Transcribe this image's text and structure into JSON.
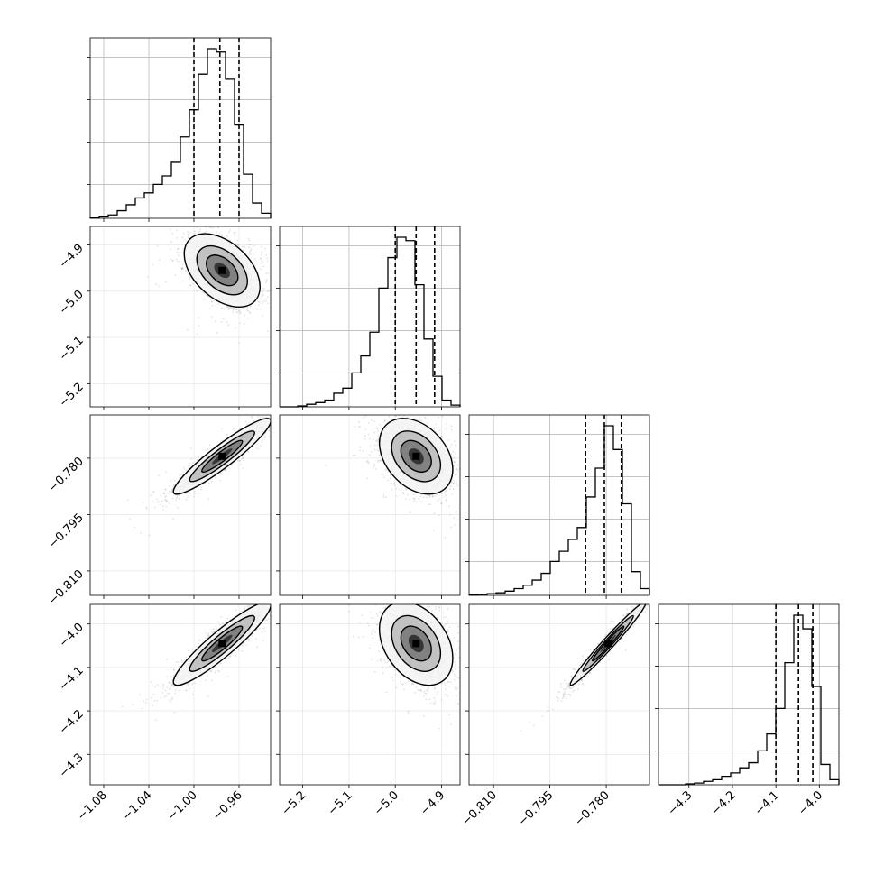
{
  "chart_data": {
    "type": "corner",
    "grid": true,
    "params": [
      {
        "range": [
          -1.092,
          -0.932
        ],
        "ticks": [
          -1.08,
          -1.04,
          -1.0,
          -0.96
        ],
        "tick_labels": [
          "−1.08",
          "−1.04",
          "−1.00",
          "−0.96"
        ],
        "quantiles": [
          -1.0,
          -0.977,
          -0.96
        ],
        "hist": {
          "edges": [
            -1.092,
            -1.084,
            -1.076,
            -1.068,
            -1.06,
            -1.052,
            -1.044,
            -1.036,
            -1.028,
            -1.02,
            -1.012,
            -1.004,
            -0.996,
            -0.988,
            -0.98,
            -0.972,
            -0.964,
            -0.956,
            -0.948,
            -0.94,
            -0.932
          ],
          "counts": [
            0.002,
            0.008,
            0.02,
            0.045,
            0.08,
            0.12,
            0.15,
            0.2,
            0.25,
            0.33,
            0.48,
            0.64,
            0.85,
            1.0,
            0.98,
            0.82,
            0.55,
            0.26,
            0.09,
            0.03
          ]
        }
      },
      {
        "range": [
          -5.25,
          -4.86
        ],
        "ticks": [
          -5.2,
          -5.1,
          -5.0,
          -4.9
        ],
        "tick_labels": [
          "−5.2",
          "−5.1",
          "−5.0",
          "−4.9"
        ],
        "quantiles": [
          -5.0,
          -4.955,
          -4.915
        ],
        "hist": {
          "edges": [
            -5.25,
            -5.2305,
            -5.211,
            -5.1915,
            -5.172,
            -5.1525,
            -5.133,
            -5.1135,
            -5.094,
            -5.0745,
            -5.055,
            -5.0355,
            -5.016,
            -4.9965,
            -4.977,
            -4.9575,
            -4.938,
            -4.9185,
            -4.899,
            -4.8795,
            -4.86
          ],
          "counts": [
            0.0,
            0.0,
            0.005,
            0.015,
            0.025,
            0.04,
            0.08,
            0.11,
            0.2,
            0.3,
            0.44,
            0.7,
            0.88,
            1.0,
            0.98,
            0.72,
            0.4,
            0.18,
            0.04,
            0.01
          ]
        }
      },
      {
        "range": [
          -0.8165,
          -0.7685
        ],
        "ticks": [
          -0.81,
          -0.795,
          -0.78
        ],
        "tick_labels": [
          "−0.810",
          "−0.795",
          "−0.780"
        ],
        "quantiles": [
          -0.7855,
          -0.7805,
          -0.776
        ],
        "hist": {
          "edges": [
            -0.8165,
            -0.8141,
            -0.8117,
            -0.8093,
            -0.8069,
            -0.8045,
            -0.8021,
            -0.7997,
            -0.7973,
            -0.7949,
            -0.7925,
            -0.7901,
            -0.7877,
            -0.7853,
            -0.7829,
            -0.7805,
            -0.7781,
            -0.7757,
            -0.7733,
            -0.7709,
            -0.7685
          ],
          "counts": [
            0.002,
            0.005,
            0.01,
            0.015,
            0.025,
            0.04,
            0.06,
            0.09,
            0.13,
            0.2,
            0.26,
            0.33,
            0.4,
            0.58,
            0.75,
            1.0,
            0.86,
            0.54,
            0.14,
            0.04
          ]
        }
      },
      {
        "range": [
          -4.37,
          -3.955
        ],
        "ticks": [
          -4.3,
          -4.2,
          -4.1,
          -4.0
        ],
        "tick_labels": [
          "−4.3",
          "−4.2",
          "−4.1",
          "−4.0"
        ],
        "quantiles": [
          -4.1,
          -4.048,
          -4.015
        ],
        "hist": {
          "edges": [
            -4.37,
            -4.34925,
            -4.3285,
            -4.30775,
            -4.287,
            -4.26625,
            -4.2455,
            -4.22475,
            -4.204,
            -4.18325,
            -4.1625,
            -4.14175,
            -4.121,
            -4.10025,
            -4.0795,
            -4.05875,
            -4.038,
            -4.01725,
            -3.9965,
            -3.97575,
            -3.955
          ],
          "counts": [
            0.0,
            0.0,
            0.0,
            0.005,
            0.01,
            0.02,
            0.03,
            0.05,
            0.07,
            0.1,
            0.13,
            0.2,
            0.3,
            0.45,
            0.72,
            1.0,
            0.92,
            0.58,
            0.12,
            0.03
          ]
        }
      }
    ],
    "pairs": [
      {
        "x": 0,
        "y": 1,
        "center": [
          -0.975,
          -4.955
        ],
        "sx": 0.014,
        "sy": 0.033,
        "rho": -0.45,
        "n": 2600
      },
      {
        "x": 0,
        "y": 2,
        "center": [
          -0.975,
          -0.7795
        ],
        "sx": 0.018,
        "sy": 0.0042,
        "rho": 0.93,
        "n": 2600
      },
      {
        "x": 1,
        "y": 2,
        "center": [
          -4.955,
          -0.7795
        ],
        "sx": 0.033,
        "sy": 0.0042,
        "rho": -0.35,
        "n": 2600
      },
      {
        "x": 0,
        "y": 3,
        "center": [
          -0.975,
          -4.045
        ],
        "sx": 0.018,
        "sy": 0.04,
        "rho": 0.92,
        "n": 2600
      },
      {
        "x": 1,
        "y": 3,
        "center": [
          -4.955,
          -4.045
        ],
        "sx": 0.033,
        "sy": 0.04,
        "rho": -0.35,
        "n": 2600
      },
      {
        "x": 2,
        "y": 3,
        "center": [
          -0.7795,
          -4.045
        ],
        "sx": 0.0042,
        "sy": 0.04,
        "rho": 0.98,
        "n": 2600
      }
    ],
    "colors": {
      "hist": "#000000",
      "quantile": "#000000",
      "scatter": "#9a9a9a",
      "contour": "#000000",
      "grid": "#b0b0b0"
    }
  }
}
